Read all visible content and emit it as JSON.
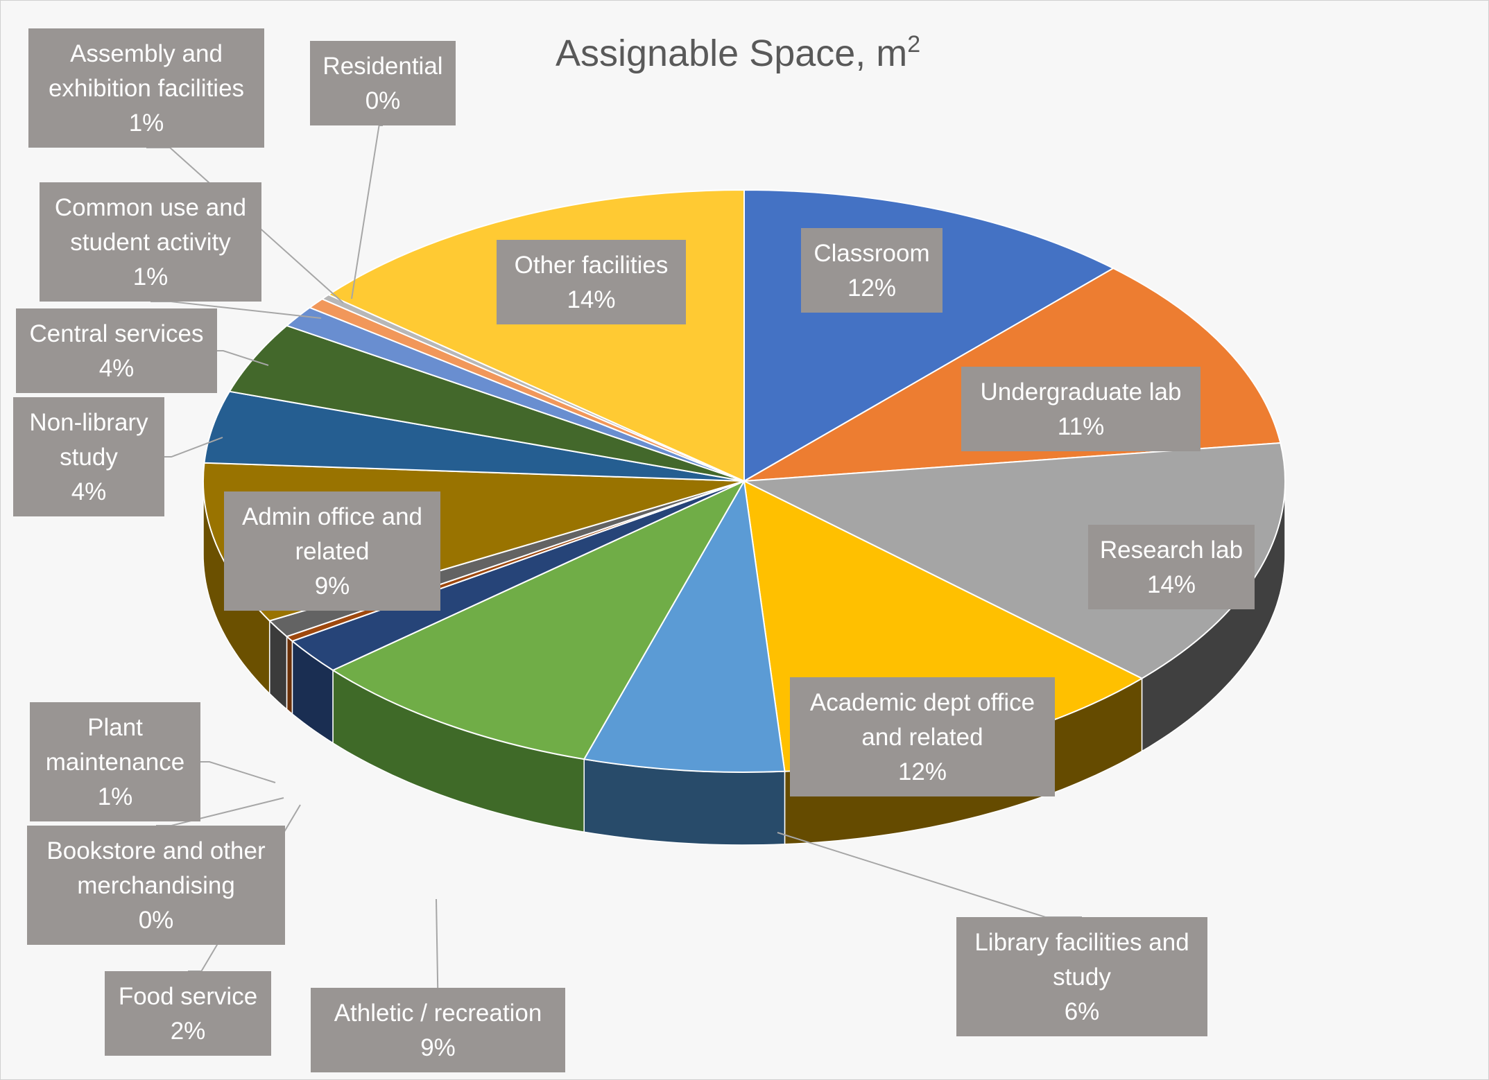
{
  "chart_data": {
    "type": "pie",
    "variant": "3d",
    "title": "Assignable Space, m",
    "title_superscript": "2",
    "slices": [
      {
        "label": "Classroom",
        "value": 12,
        "pct_label": "12%",
        "color": "#4472c4",
        "side_color": "#2f4f8a"
      },
      {
        "label": "Undergraduate lab",
        "value": 11,
        "pct_label": "11%",
        "color": "#ed7d31",
        "side_color": "#a65722"
      },
      {
        "label": "Research lab",
        "value": 14,
        "pct_label": "14%",
        "color": "#a5a5a5",
        "side_color": "#404040"
      },
      {
        "label": "Academic dept office and related",
        "value": 12,
        "pct_label": "12%",
        "color": "#ffc000",
        "side_color": "#654b00"
      },
      {
        "label": "Library facilities and study",
        "value": 6,
        "pct_label": "6%",
        "color": "#5b9bd5",
        "side_color": "#284b6a"
      },
      {
        "label": "Athletic / recreation",
        "value": 9,
        "pct_label": "9%",
        "color": "#70ad47",
        "side_color": "#3f6a28"
      },
      {
        "label": "Food service",
        "value": 2,
        "pct_label": "2%",
        "color": "#264478",
        "side_color": "#1a2e52"
      },
      {
        "label": "Bookstore and other merchandising",
        "value": 0.3,
        "pct_label": "0%",
        "color": "#9e480e",
        "side_color": "#6a3009"
      },
      {
        "label": "Plant maintenance",
        "value": 1,
        "pct_label": "1%",
        "color": "#636363",
        "side_color": "#3b3b3b"
      },
      {
        "label": "Admin office and related",
        "value": 9,
        "pct_label": "9%",
        "color": "#997300",
        "side_color": "#6b5000"
      },
      {
        "label": "Non-library study",
        "value": 4,
        "pct_label": "4%",
        "color": "#255e91",
        "side_color": "#183e60"
      },
      {
        "label": "Central services",
        "value": 4,
        "pct_label": "4%",
        "color": "#43682b",
        "side_color": "#2c451c"
      },
      {
        "label": "Common use and student activity",
        "value": 1.2,
        "pct_label": "1%",
        "color": "#698ed0",
        "side_color": "#46608d"
      },
      {
        "label": "Assembly and exhibition facilities",
        "value": 0.6,
        "pct_label": "1%",
        "color": "#f1975a",
        "side_color": "#a6683e"
      },
      {
        "label": "Residential",
        "value": 0.3,
        "pct_label": "0%",
        "color": "#b7b7b7",
        "side_color": "#7a7a7a"
      },
      {
        "label": "Other facilities",
        "value": 14,
        "pct_label": "14%",
        "color": "#ffca33",
        "side_color": "#a88520"
      }
    ],
    "legend": "none",
    "data_labels": "category name and percentage"
  },
  "label_lines": {
    "Classroom": [
      "Classroom",
      "12%"
    ],
    "Undergraduate lab": [
      "Undergraduate lab",
      "11%"
    ],
    "Research lab": [
      "Research lab",
      "14%"
    ],
    "Academic dept office and related": [
      "Academic dept office",
      "and related",
      "12%"
    ],
    "Library facilities and study": [
      "Library facilities and",
      "study",
      "6%"
    ],
    "Athletic / recreation": [
      "Athletic / recreation",
      "9%"
    ],
    "Food service": [
      "Food service",
      "2%"
    ],
    "Bookstore and other merchandising": [
      "Bookstore and other",
      "merchandising",
      "0%"
    ],
    "Plant maintenance": [
      "Plant",
      "maintenance",
      "1%"
    ],
    "Admin office and related": [
      "Admin office and",
      "related",
      "9%"
    ],
    "Non-library study": [
      "Non-library",
      "study",
      "4%"
    ],
    "Central services": [
      "Central services",
      "4%"
    ],
    "Common use and student activity": [
      "Common use and",
      "student activity",
      "1%"
    ],
    "Assembly and exhibition facilities": [
      "Assembly and",
      "exhibition facilities",
      "1%"
    ],
    "Residential": [
      "Residential",
      "0%"
    ],
    "Other facilities": [
      "Other facilities",
      "14%"
    ]
  },
  "colors": {
    "background": "#f7f7f7",
    "label_box": "#999593",
    "label_text": "#ffffff",
    "title_text": "#595959",
    "leader_line": "#a6a6a6"
  }
}
